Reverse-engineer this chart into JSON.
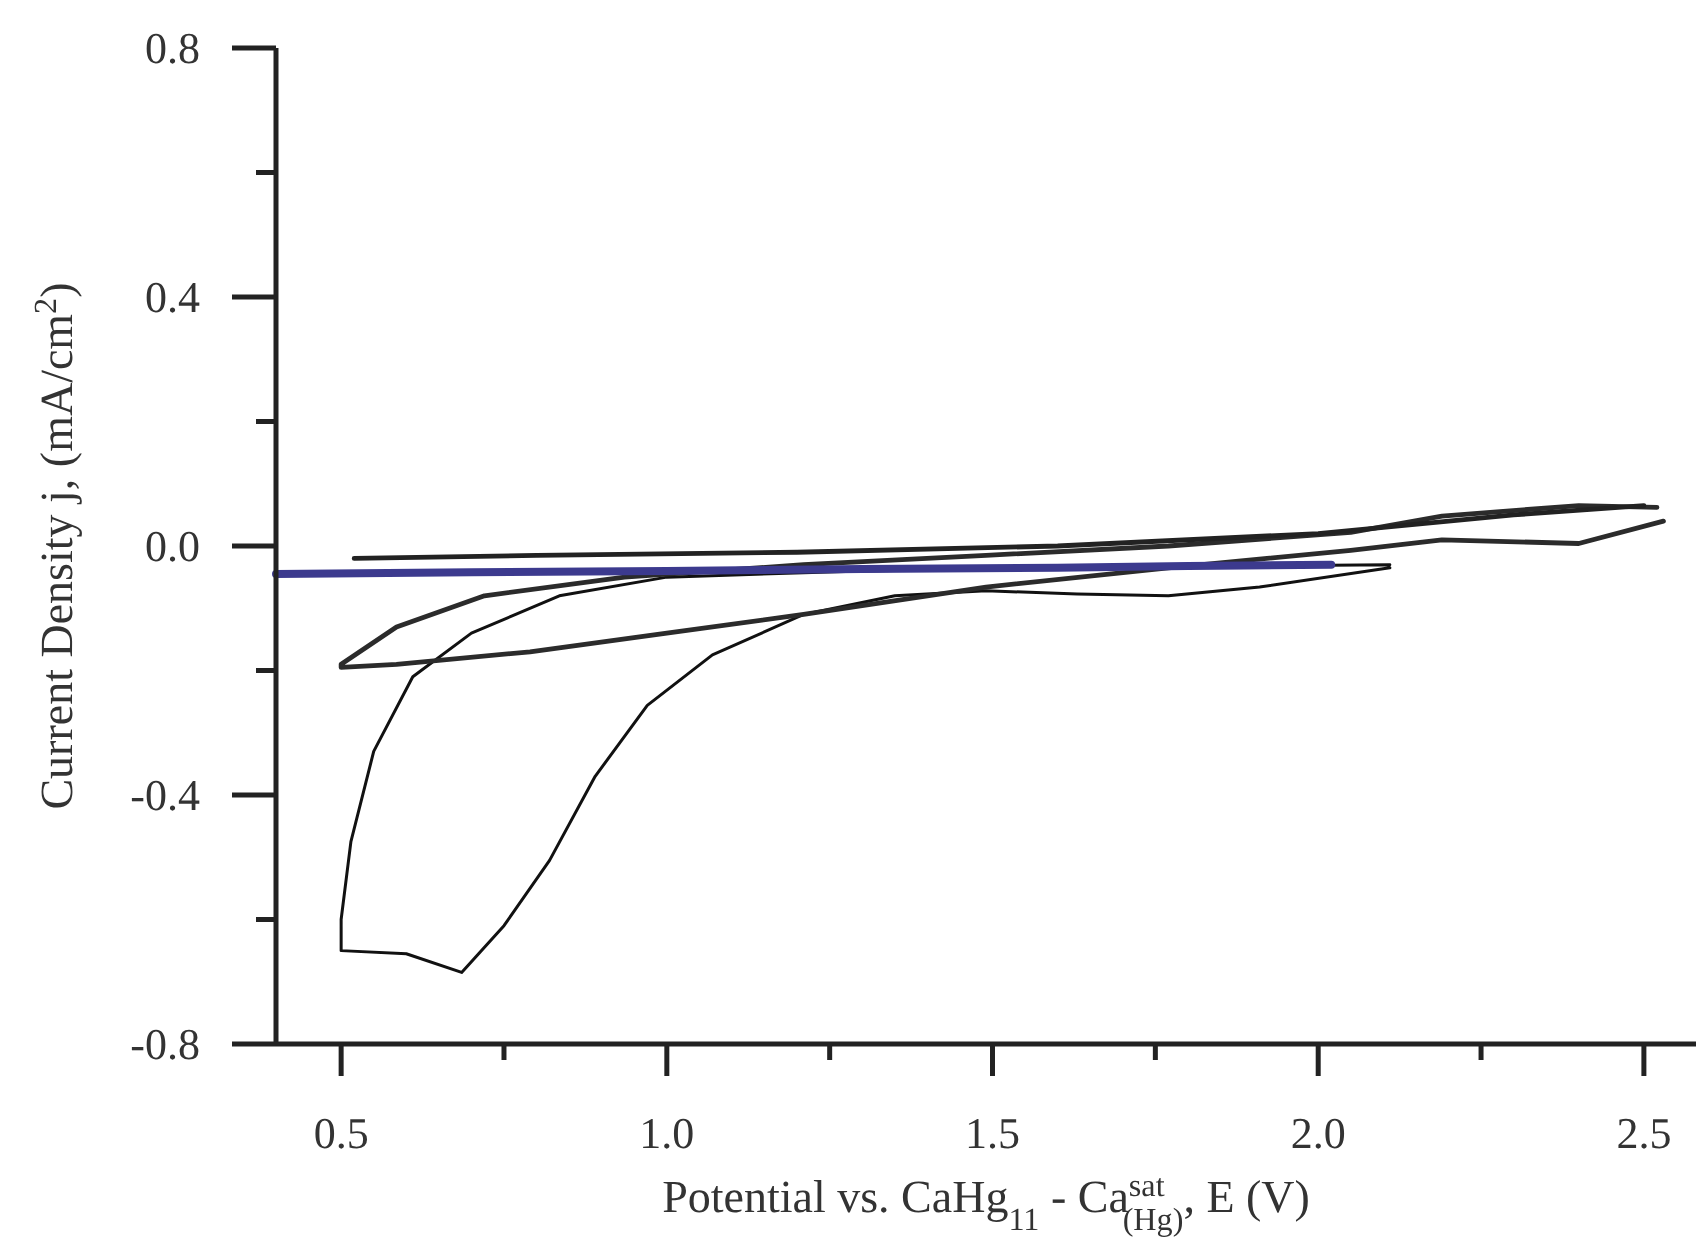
{
  "chart_data": {
    "type": "line",
    "xlabel": "Potential vs. CaHg$_{11}$ - Ca$^{sat}$$_{(Hg)}$, E (V)",
    "ylabel": "Current Density j, (mA/cm$^{2}$)",
    "xlim": [
      0.4,
      2.58
    ],
    "ylim": [
      -0.8,
      0.8
    ],
    "xticks": [
      0.5,
      {
        "value": 0.75,
        "label": null
      },
      {
        "value": 1,
        "label": "1.0"
      },
      {
        "value": 1.25,
        "label": null
      },
      1.5,
      {
        "value": 1.75,
        "label": null
      },
      {
        "value": 2,
        "label": "2.0"
      },
      {
        "value": 2.25,
        "label": null
      },
      2.5
    ],
    "yticks": [
      {
        "value": -0.8,
        "label": "-0.8"
      },
      {
        "value": -0.6,
        "label": null
      },
      -0.4,
      {
        "value": -0.2,
        "label": null
      },
      {
        "value": 0,
        "label": "0.0"
      },
      {
        "value": 0.2,
        "label": null
      },
      0.4,
      {
        "value": 0.6,
        "label": null
      },
      0.8
    ],
    "grid": false,
    "marker": "none",
    "line_style": "solid",
    "series": [
      {
        "color": "#111111",
        "x": [
          2.11,
          1.91,
          1.77,
          1.63,
          1.49,
          1.35,
          1.21,
          1.07,
          0.97,
          0.89,
          0.82,
          0.75,
          0.685,
          0.6,
          0.5,
          0.5,
          0.515,
          0.55,
          0.61,
          0.7,
          0.835,
          1.0,
          1.3,
          1.6,
          1.9,
          2.11
        ],
        "values": [
          -0.035,
          -0.066,
          -0.08,
          -0.077,
          -0.072,
          -0.08,
          -0.11,
          -0.175,
          -0.256,
          -0.37,
          -0.505,
          -0.61,
          -0.685,
          -0.655,
          -0.65,
          -0.6,
          -0.475,
          -0.33,
          -0.21,
          -0.14,
          -0.08,
          -0.05,
          -0.04,
          -0.035,
          -0.032,
          -0.03
        ]
      },
      {
        "color": "#2b2b2b",
        "x": [
          2.53,
          2.4,
          2.19,
          2.05,
          1.77,
          1.49,
          1.21,
          1.0,
          0.79,
          0.585,
          0.5,
          0.5,
          0.585,
          0.72,
          0.935,
          1.21,
          1.49,
          1.77,
          2.05,
          2.19,
          2.4,
          2.52
        ],
        "values": [
          0.04,
          0.004,
          0.01,
          -0.007,
          -0.035,
          -0.066,
          -0.11,
          -0.14,
          -0.17,
          -0.19,
          -0.195,
          -0.19,
          -0.13,
          -0.08,
          -0.05,
          -0.03,
          -0.015,
          0.0,
          0.022,
          0.048,
          0.065,
          0.062
        ]
      },
      {
        "color": "#3c3a8e",
        "x": [
          0.4,
          0.7,
          1.0,
          1.3,
          1.6,
          1.8,
          2.02
        ],
        "values": [
          -0.045,
          -0.042,
          -0.04,
          -0.037,
          -0.035,
          -0.032,
          -0.03
        ]
      },
      {
        "color": "#222222",
        "x": [
          0.52,
          0.8,
          1.2,
          1.6,
          2.0,
          2.3,
          2.5
        ],
        "values": [
          -0.02,
          -0.015,
          -0.01,
          0.0,
          0.02,
          0.05,
          0.065
        ]
      }
    ]
  }
}
